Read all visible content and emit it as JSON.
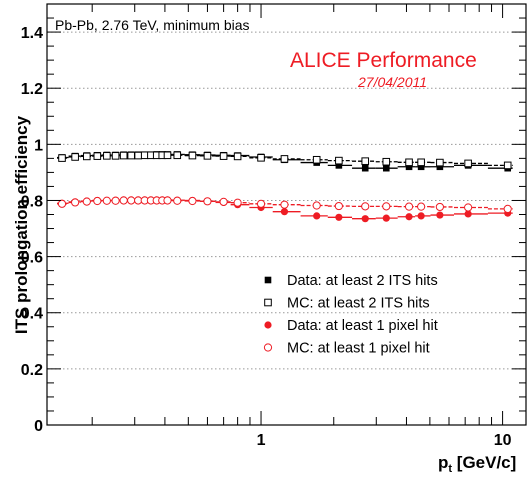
{
  "chart_data": {
    "type": "scatter",
    "xscale": "log",
    "xlim": [
      0.13,
      12.5
    ],
    "ylim": [
      0,
      1.5
    ],
    "xlabel_main": "p",
    "xlabel_sub": "t",
    "xlabel_unit": " [GeV/c]",
    "ylabel": "ITS prolongation efficiency",
    "x_tick_labels": [
      "1",
      "10"
    ],
    "y_tick_labels": [
      "0",
      "0.2",
      "0.4",
      "0.6",
      "0.8",
      "1",
      "1.2",
      "1.4"
    ],
    "grid": "horizontal dotted",
    "legend_position": "bottom-right",
    "annotations": {
      "system": "Pb-Pb, 2.76 TeV, minimum bias",
      "experiment": "ALICE Performance",
      "date": "27/04/2011"
    },
    "series": [
      {
        "name": "Data: at least 2 ITS hits",
        "color": "#000000",
        "marker": "filled-square",
        "points": [
          [
            0.15,
            0.953
          ],
          [
            0.17,
            0.958
          ],
          [
            0.19,
            0.96
          ],
          [
            0.21,
            0.961
          ],
          [
            0.23,
            0.962
          ],
          [
            0.25,
            0.962
          ],
          [
            0.27,
            0.963
          ],
          [
            0.29,
            0.963
          ],
          [
            0.31,
            0.963
          ],
          [
            0.33,
            0.963
          ],
          [
            0.35,
            0.963
          ],
          [
            0.37,
            0.964
          ],
          [
            0.39,
            0.964
          ],
          [
            0.41,
            0.964
          ],
          [
            0.45,
            0.964
          ],
          [
            0.52,
            0.963
          ],
          [
            0.6,
            0.962
          ],
          [
            0.7,
            0.961
          ],
          [
            0.8,
            0.96
          ],
          [
            1.0,
            0.955
          ],
          [
            1.25,
            0.945
          ],
          [
            1.7,
            0.935
          ],
          [
            2.1,
            0.925
          ],
          [
            2.7,
            0.915
          ],
          [
            3.3,
            0.915
          ],
          [
            4.1,
            0.92
          ],
          [
            4.6,
            0.92
          ],
          [
            5.5,
            0.92
          ],
          [
            7.2,
            0.925
          ],
          [
            10.5,
            0.915
          ]
        ]
      },
      {
        "name": "MC: at least 2 ITS hits",
        "color": "#000000",
        "marker": "open-square",
        "points": [
          [
            0.15,
            0.951
          ],
          [
            0.17,
            0.955
          ],
          [
            0.19,
            0.957
          ],
          [
            0.21,
            0.958
          ],
          [
            0.23,
            0.959
          ],
          [
            0.25,
            0.959
          ],
          [
            0.27,
            0.96
          ],
          [
            0.29,
            0.96
          ],
          [
            0.31,
            0.96
          ],
          [
            0.33,
            0.961
          ],
          [
            0.35,
            0.961
          ],
          [
            0.37,
            0.961
          ],
          [
            0.39,
            0.961
          ],
          [
            0.41,
            0.961
          ],
          [
            0.45,
            0.961
          ],
          [
            0.52,
            0.96
          ],
          [
            0.6,
            0.959
          ],
          [
            0.7,
            0.958
          ],
          [
            0.8,
            0.957
          ],
          [
            1.0,
            0.952
          ],
          [
            1.25,
            0.948
          ],
          [
            1.7,
            0.945
          ],
          [
            2.1,
            0.942
          ],
          [
            2.7,
            0.94
          ],
          [
            3.3,
            0.938
          ],
          [
            4.1,
            0.936
          ],
          [
            4.6,
            0.936
          ],
          [
            5.5,
            0.935
          ],
          [
            7.2,
            0.932
          ],
          [
            10.5,
            0.925
          ]
        ]
      },
      {
        "name": "Data: at least 1 pixel hit",
        "color": "#ee1c24",
        "marker": "filled-circle",
        "points": [
          [
            0.15,
            0.79
          ],
          [
            0.17,
            0.795
          ],
          [
            0.19,
            0.798
          ],
          [
            0.21,
            0.8
          ],
          [
            0.23,
            0.8
          ],
          [
            0.25,
            0.801
          ],
          [
            0.27,
            0.802
          ],
          [
            0.29,
            0.802
          ],
          [
            0.31,
            0.802
          ],
          [
            0.33,
            0.802
          ],
          [
            0.35,
            0.802
          ],
          [
            0.37,
            0.802
          ],
          [
            0.39,
            0.802
          ],
          [
            0.41,
            0.802
          ],
          [
            0.45,
            0.801
          ],
          [
            0.52,
            0.8
          ],
          [
            0.6,
            0.797
          ],
          [
            0.7,
            0.793
          ],
          [
            0.8,
            0.785
          ],
          [
            1.0,
            0.775
          ],
          [
            1.25,
            0.76
          ],
          [
            1.7,
            0.745
          ],
          [
            2.1,
            0.74
          ],
          [
            2.7,
            0.735
          ],
          [
            3.3,
            0.737
          ],
          [
            4.1,
            0.742
          ],
          [
            4.6,
            0.745
          ],
          [
            5.5,
            0.748
          ],
          [
            7.2,
            0.752
          ],
          [
            10.5,
            0.755
          ]
        ]
      },
      {
        "name": "MC: at least 1 pixel hit",
        "color": "#ee1c24",
        "marker": "open-circle",
        "points": [
          [
            0.15,
            0.788
          ],
          [
            0.17,
            0.793
          ],
          [
            0.19,
            0.796
          ],
          [
            0.21,
            0.798
          ],
          [
            0.23,
            0.799
          ],
          [
            0.25,
            0.799
          ],
          [
            0.27,
            0.8
          ],
          [
            0.29,
            0.8
          ],
          [
            0.31,
            0.8
          ],
          [
            0.33,
            0.8
          ],
          [
            0.35,
            0.8
          ],
          [
            0.37,
            0.8
          ],
          [
            0.39,
            0.8
          ],
          [
            0.41,
            0.8
          ],
          [
            0.45,
            0.799
          ],
          [
            0.52,
            0.798
          ],
          [
            0.6,
            0.797
          ],
          [
            0.7,
            0.795
          ],
          [
            0.8,
            0.792
          ],
          [
            1.0,
            0.788
          ],
          [
            1.25,
            0.785
          ],
          [
            1.7,
            0.782
          ],
          [
            2.1,
            0.78
          ],
          [
            2.7,
            0.779
          ],
          [
            3.3,
            0.779
          ],
          [
            4.1,
            0.778
          ],
          [
            4.6,
            0.778
          ],
          [
            5.5,
            0.777
          ],
          [
            7.2,
            0.775
          ],
          [
            10.5,
            0.77
          ]
        ]
      }
    ]
  }
}
